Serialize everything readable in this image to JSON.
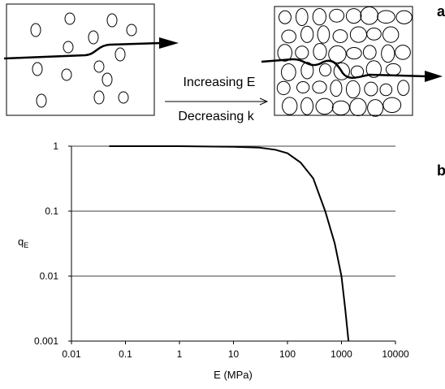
{
  "diagram": {
    "panel_a": "a",
    "panel_b": "b",
    "arrow_top": "Increasing E",
    "arrow_bottom": "Decreasing k"
  },
  "chart_data": {
    "type": "line",
    "x_label": "E (MPa)",
    "y_label": "q",
    "y_label_sub": "E",
    "x": [
      0.05,
      1,
      10,
      30,
      60,
      100,
      175,
      300,
      500,
      750,
      1000,
      1170,
      1350
    ],
    "values": [
      1,
      1,
      0.98,
      0.95,
      0.88,
      0.78,
      0.56,
      0.32,
      0.1,
      0.032,
      0.01,
      0.0032,
      0.001
    ],
    "color": "#000000",
    "xlim": [
      0.01,
      10000
    ],
    "ylim": [
      0.001,
      1
    ],
    "xticks": [
      0.01,
      0.1,
      1,
      10,
      100,
      1000,
      10000
    ],
    "yticks": [
      0.001,
      0.01,
      0.1,
      1
    ],
    "xscale": "log",
    "yscale": "log",
    "grid": true
  }
}
